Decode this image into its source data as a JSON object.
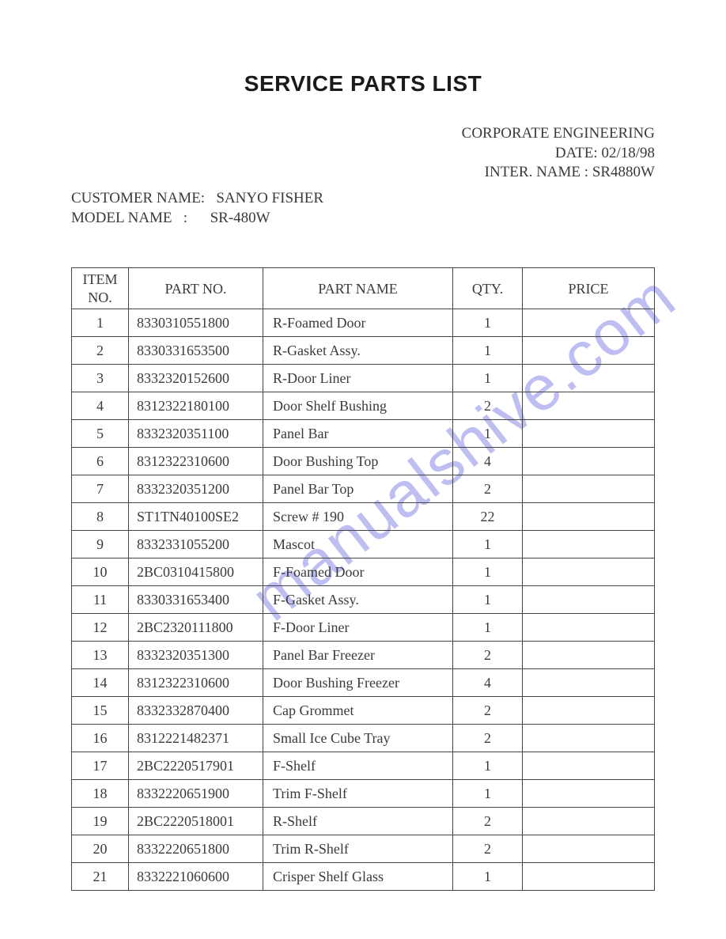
{
  "document": {
    "title": "SERVICE PARTS LIST",
    "corporate": "CORPORATE ENGINEERING",
    "date_label": "DATE:",
    "date_value": "02/18/98",
    "inter_name_label": "INTER. NAME :",
    "inter_name_value": "SR4880W",
    "customer_name_label": "CUSTOMER NAME:",
    "customer_name_value": "SANYO FISHER",
    "model_name_label": "MODEL NAME   :",
    "model_name_value": "SR-480W",
    "watermark": "manualshive.com"
  },
  "table": {
    "columns": {
      "item_no": "ITEM NO.",
      "part_no": "PART NO.",
      "part_name": "PART NAME",
      "qty": "QTY.",
      "price": "PRICE"
    },
    "column_widths": {
      "item_no": 72,
      "part_no": 170,
      "part_name": 240,
      "qty": 88
    },
    "colors": {
      "border": "#444444",
      "text": "#3a3a3a",
      "background": "#ffffff"
    },
    "rows": [
      {
        "item_no": "1",
        "part_no": "8330310551800",
        "part_name": "R-Foamed Door",
        "qty": "1",
        "price": ""
      },
      {
        "item_no": "2",
        "part_no": "8330331653500",
        "part_name": "R-Gasket Assy.",
        "qty": "1",
        "price": ""
      },
      {
        "item_no": "3",
        "part_no": "8332320152600",
        "part_name": "R-Door Liner",
        "qty": "1",
        "price": ""
      },
      {
        "item_no": "4",
        "part_no": "8312322180100",
        "part_name": "Door Shelf Bushing",
        "qty": "2",
        "price": ""
      },
      {
        "item_no": "5",
        "part_no": "8332320351100",
        "part_name": "Panel Bar",
        "qty": "1",
        "price": ""
      },
      {
        "item_no": "6",
        "part_no": "8312322310600",
        "part_name": "Door Bushing Top",
        "qty": "4",
        "price": ""
      },
      {
        "item_no": "7",
        "part_no": "8332320351200",
        "part_name": "Panel Bar Top",
        "qty": "2",
        "price": ""
      },
      {
        "item_no": "8",
        "part_no": "ST1TN40100SE2",
        "part_name": "Screw # 190",
        "qty": "22",
        "price": ""
      },
      {
        "item_no": "9",
        "part_no": "8332331055200",
        "part_name": "Mascot",
        "qty": "1",
        "price": ""
      },
      {
        "item_no": "10",
        "part_no": "2BC0310415800",
        "part_name": "F-Foamed Door",
        "qty": "1",
        "price": ""
      },
      {
        "item_no": "11",
        "part_no": "8330331653400",
        "part_name": "F-Gasket Assy.",
        "qty": "1",
        "price": ""
      },
      {
        "item_no": "12",
        "part_no": "2BC2320111800",
        "part_name": "F-Door Liner",
        "qty": "1",
        "price": ""
      },
      {
        "item_no": "13",
        "part_no": "8332320351300",
        "part_name": "Panel Bar Freezer",
        "qty": "2",
        "price": ""
      },
      {
        "item_no": "14",
        "part_no": "8312322310600",
        "part_name": "Door Bushing Freezer",
        "qty": "4",
        "price": ""
      },
      {
        "item_no": "15",
        "part_no": "8332332870400",
        "part_name": "Cap Grommet",
        "qty": "2",
        "price": ""
      },
      {
        "item_no": "16",
        "part_no": "8312221482371",
        "part_name": "Small Ice Cube Tray",
        "qty": "2",
        "price": ""
      },
      {
        "item_no": "17",
        "part_no": "2BC2220517901",
        "part_name": "F-Shelf",
        "qty": "1",
        "price": ""
      },
      {
        "item_no": "18",
        "part_no": "8332220651900",
        "part_name": "Trim F-Shelf",
        "qty": "1",
        "price": ""
      },
      {
        "item_no": "19",
        "part_no": "2BC2220518001",
        "part_name": "R-Shelf",
        "qty": "2",
        "price": ""
      },
      {
        "item_no": "20",
        "part_no": "8332220651800",
        "part_name": "Trim R-Shelf",
        "qty": "2",
        "price": ""
      },
      {
        "item_no": "21",
        "part_no": "8332221060600",
        "part_name": "Crisper Shelf Glass",
        "qty": "1",
        "price": ""
      }
    ]
  }
}
